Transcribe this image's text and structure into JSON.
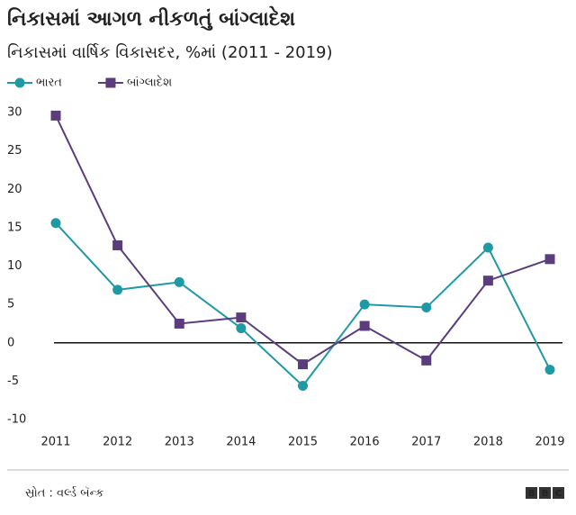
{
  "chart_data": {
    "type": "line",
    "title": "નિકાસમાં આગળ નીકળતું બાંગ્લાદેશ",
    "subtitle": "નિકાસમાં વાર્ષિક વિકાસદર, %માં (2011 - 2019)",
    "categories": [
      "2011",
      "2012",
      "2013",
      "2014",
      "2015",
      "2016",
      "2017",
      "2018",
      "2019"
    ],
    "series": [
      {
        "name": "ભારત",
        "color": "#1f9aa5",
        "marker": "circle",
        "values": [
          15.6,
          6.9,
          7.9,
          1.9,
          -5.6,
          5.0,
          4.6,
          12.4,
          -3.5
        ]
      },
      {
        "name": "બાંગ્લાદેશ",
        "color": "#5b3d7e",
        "marker": "square",
        "values": [
          29.6,
          12.7,
          2.5,
          3.3,
          -2.8,
          2.2,
          -2.3,
          8.1,
          10.9
        ]
      }
    ],
    "ylim": [
      -10,
      30
    ],
    "yticks": [
      -10,
      -5,
      0,
      5,
      10,
      15,
      20,
      25,
      30
    ],
    "zero_line": true,
    "legend": "top-left",
    "source": "સ્રોત : વર્લ્ડ બૅન્ક",
    "logo": "BBC"
  }
}
